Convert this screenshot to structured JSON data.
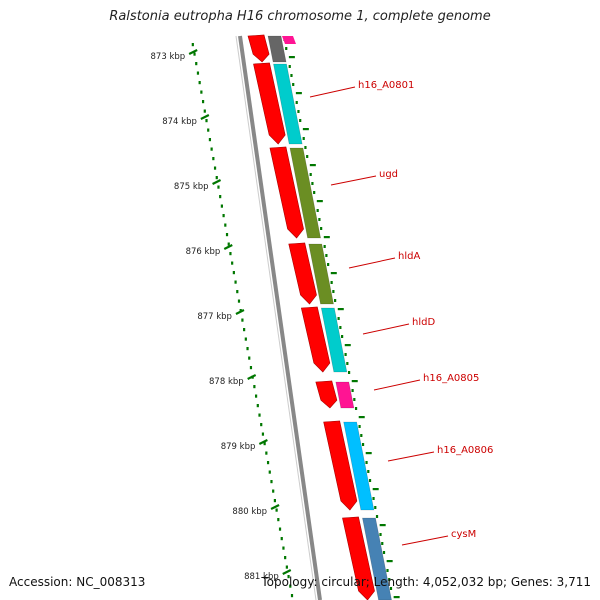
{
  "title": "Ralstonia eutropha H16 chromosome 1, complete genome",
  "footer": {
    "accession": "Accession: NC_008313",
    "topology": "Topology: circular; Length: 4,052,032 bp; Genes: 3,711"
  },
  "kbp_labels": [
    "873 kbp",
    "874 kbp",
    "875 kbp",
    "876 kbp",
    "877 kbp",
    "878 kbp",
    "879 kbp",
    "880 kbp",
    "881 kbp"
  ],
  "genes": [
    {
      "name": "h16_A0801",
      "color": "#00cccc"
    },
    {
      "name": "ugd",
      "color": "#6b8e23"
    },
    {
      "name": "hldA",
      "color": "#6b8e23"
    },
    {
      "name": "hldD",
      "color": "#00cccc"
    },
    {
      "name": "h16_A0805",
      "color": "#ff1493"
    },
    {
      "name": "h16_A0806",
      "color": "#00bfff"
    },
    {
      "name": "cysM",
      "color": "#4682b4"
    }
  ],
  "colors": {
    "cds": "#ff0000",
    "label": "#cc0000",
    "tick": "#007700",
    "backbone": "#888888"
  }
}
